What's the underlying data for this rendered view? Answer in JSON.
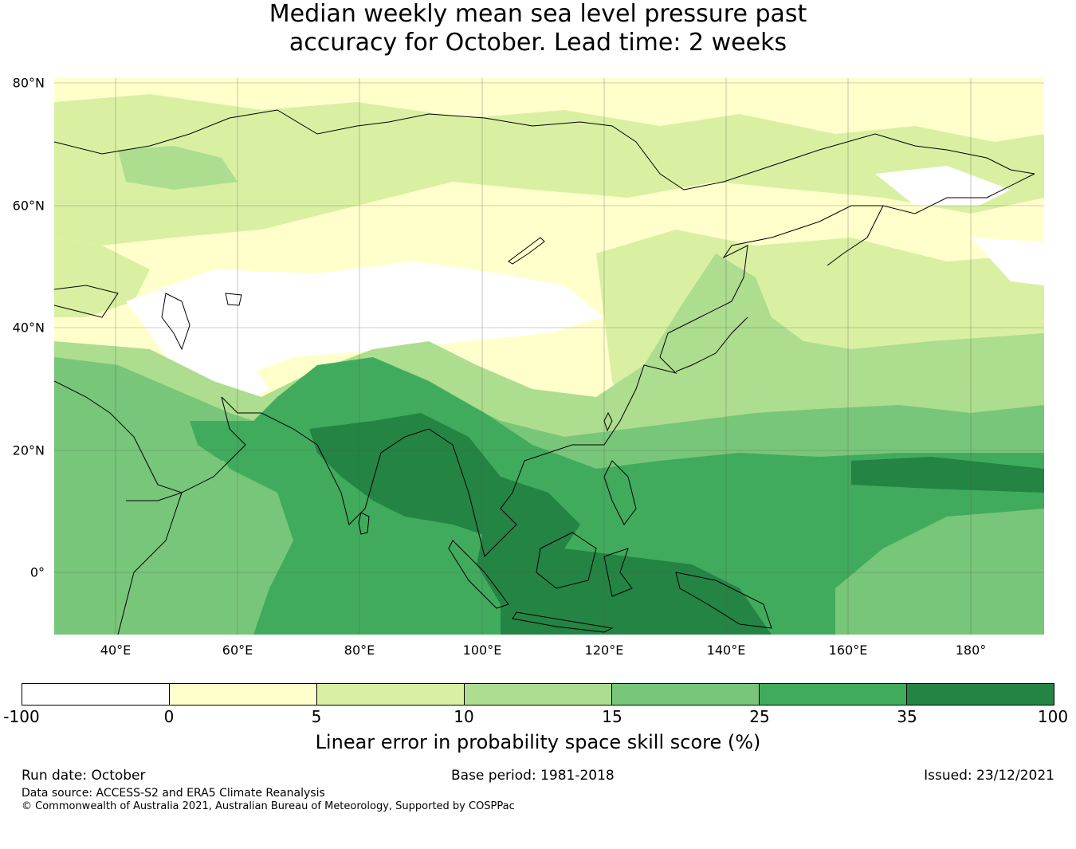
{
  "title_line1": "Median weekly mean sea level pressure past",
  "title_line2": "accuracy for October. Lead time: 2 weeks",
  "map": {
    "lon_range": [
      30,
      192
    ],
    "lat_range": [
      -10,
      80
    ],
    "lat_labels": [
      "80°N",
      "60°N",
      "40°N",
      "20°N",
      "0°"
    ],
    "lon_labels": [
      "40°E",
      "60°E",
      "80°E",
      "100°E",
      "120°E",
      "140°E",
      "160°E",
      "180°"
    ]
  },
  "colorbar": {
    "ticks": [
      "-100",
      "0",
      "5",
      "10",
      "15",
      "25",
      "35",
      "100"
    ],
    "colors": [
      "#ffffff",
      "#ffffcc",
      "#d9f0a3",
      "#addd8e",
      "#78c679",
      "#41ab5d",
      "#238443"
    ],
    "label": "Linear error in probability space skill score (%)"
  },
  "footer": {
    "run_date": "Run date: October",
    "base_period": "Base period: 1981-2018",
    "issued": "Issued: 23/12/2021",
    "data_source": "Data source: ACCESS-S2 and ERA5 Climate Reanalysis",
    "copyright": "© Commonwealth of Australia 2021, Australian Bureau of Meteorology, Supported by COSPPac"
  }
}
